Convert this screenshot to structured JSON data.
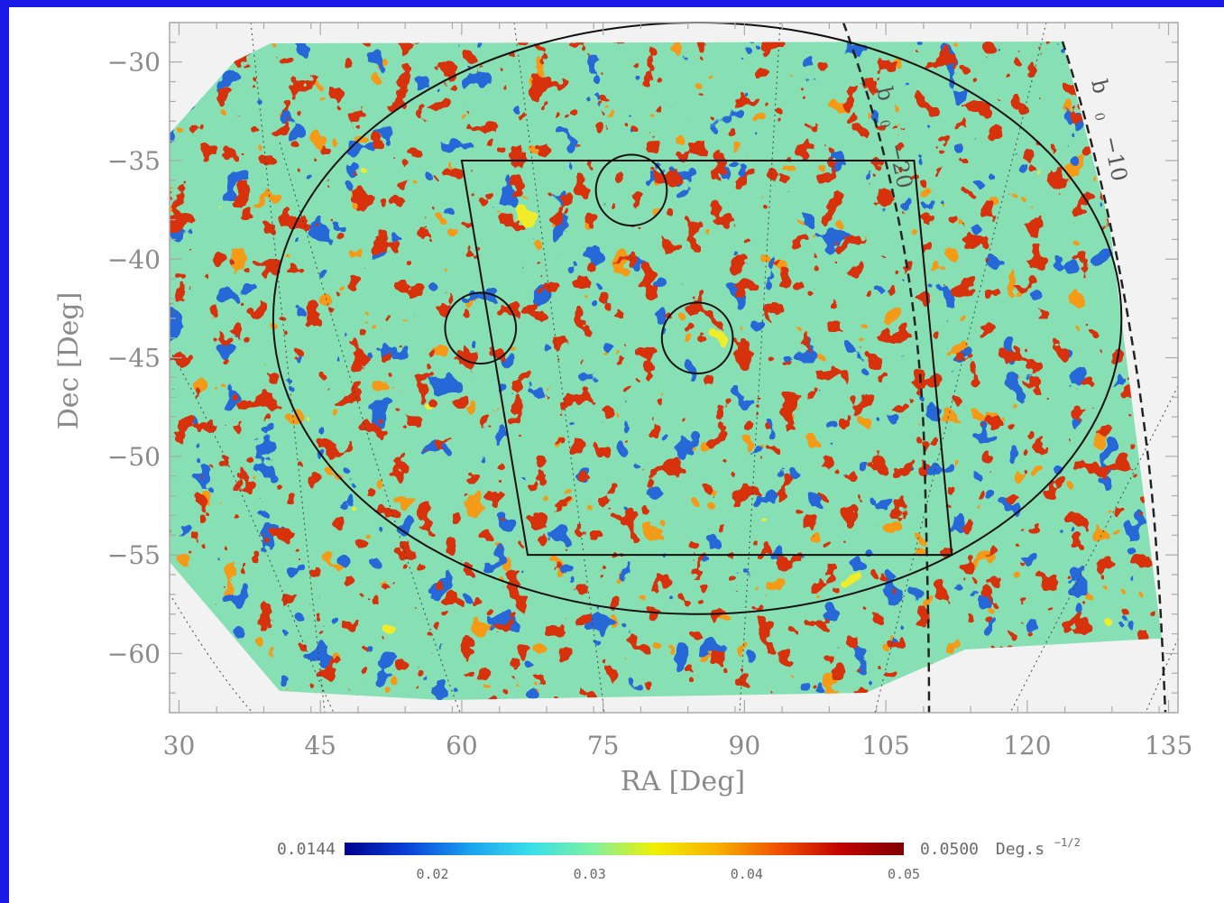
{
  "chart_data": {
    "type": "heatmap",
    "title": "",
    "xlabel": "RA [Deg]",
    "ylabel": "Dec [Deg]",
    "xlim": [
      29,
      136
    ],
    "ylim": [
      -63,
      -28
    ],
    "x_ticks": [
      30,
      45,
      60,
      75,
      90,
      105,
      120,
      135
    ],
    "x_tick_labels": [
      "30",
      "45",
      "60",
      "75",
      "90",
      "105",
      "120",
      "135"
    ],
    "y_ticks": [
      -30,
      -35,
      -40,
      -45,
      -50,
      -55,
      -60
    ],
    "y_tick_labels": [
      "−30",
      "−35",
      "−40",
      "−45",
      "−50",
      "−55",
      "−60"
    ],
    "grid": false,
    "colorbar": {
      "min": 0.0144,
      "max": 0.05,
      "min_label": "0.0144",
      "max_label": "0.0500",
      "unit_label": "Deg.s",
      "unit_exponent": "−1/2",
      "ticks": [
        0.02,
        0.03,
        0.04,
        0.05
      ],
      "tick_labels": [
        "0.02",
        "0.03",
        "0.04",
        "0.05"
      ],
      "colors": [
        "#00008f",
        "#0a40d8",
        "#1aa0f0",
        "#38e0e8",
        "#80f0a0",
        "#f0f000",
        "#f8b000",
        "#f05000",
        "#c00000",
        "#7f0000"
      ]
    },
    "overlays": {
      "ellipse": {
        "center_ra": 85,
        "center_dec": -43,
        "half_width_ra": 45,
        "half_height_dec": 15
      },
      "box": {
        "corners": [
          [
            60,
            -35
          ],
          [
            108,
            -35
          ],
          [
            112,
            -55
          ],
          [
            67,
            -55
          ]
        ]
      },
      "circles": [
        {
          "ra": 78,
          "dec": -36.5,
          "radius_deg": 1.8
        },
        {
          "ra": 62,
          "dec": -43.5,
          "radius_deg": 1.8
        },
        {
          "ra": 85,
          "dec": -44,
          "radius_deg": 1.8
        }
      ],
      "galactic_contours": [
        {
          "label_b": "b",
          "label_sub": "0",
          "label_val": "−20"
        },
        {
          "label_b": "b",
          "label_sub": "0",
          "label_val": "−10"
        }
      ]
    }
  }
}
